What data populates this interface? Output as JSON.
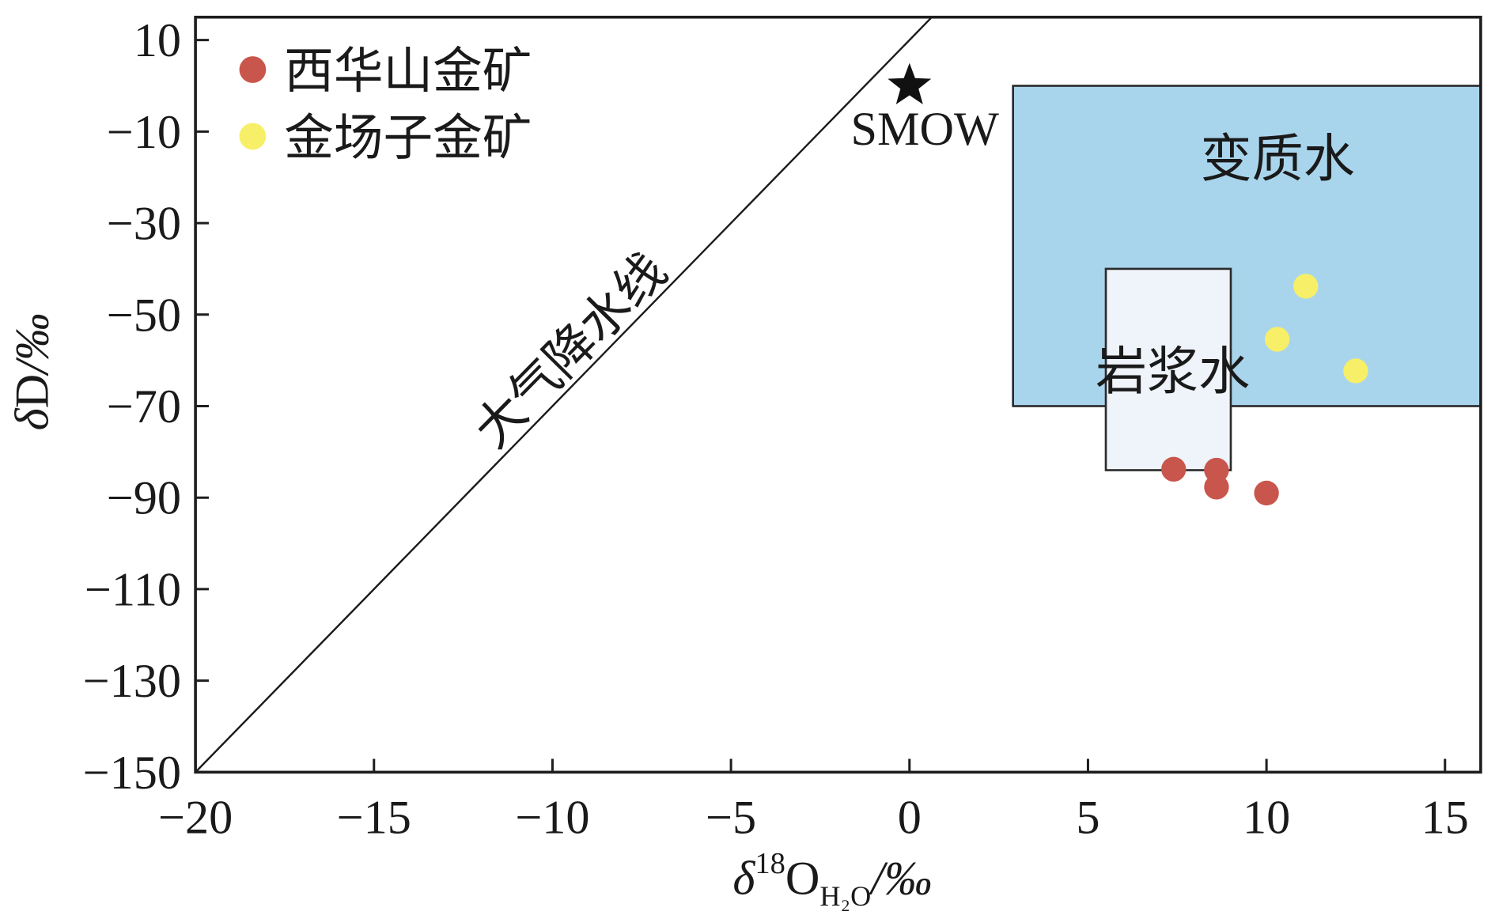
{
  "chart_data": {
    "type": "scatter",
    "xlabel": {
      "delta": "δ",
      "superscript": "18",
      "base": "O",
      "subscript": "H₂O",
      "unit": "/‰"
    },
    "ylabel": {
      "delta": "δ",
      "base": "D",
      "unit": "/‰"
    },
    "xlim": [
      -20,
      16
    ],
    "ylim": [
      -150,
      15
    ],
    "x_ticks": [
      {
        "value": -20,
        "label": "−20"
      },
      {
        "value": -15,
        "label": "−15"
      },
      {
        "value": -10,
        "label": "−10"
      },
      {
        "value": -5,
        "label": "−5"
      },
      {
        "value": 0,
        "label": "0"
      },
      {
        "value": 5,
        "label": "5"
      },
      {
        "value": 10,
        "label": "10"
      },
      {
        "value": 15,
        "label": "15"
      }
    ],
    "y_ticks": [
      {
        "value": 10,
        "label": "10"
      },
      {
        "value": -10,
        "label": "−10"
      },
      {
        "value": -30,
        "label": "−30"
      },
      {
        "value": -50,
        "label": "−50"
      },
      {
        "value": -70,
        "label": "−70"
      },
      {
        "value": -90,
        "label": "−90"
      },
      {
        "value": -110,
        "label": "−110"
      },
      {
        "value": -130,
        "label": "−130"
      },
      {
        "value": -150,
        "label": "−150"
      }
    ],
    "grid": false,
    "legend_position": "top-left",
    "series": [
      {
        "name": "西华山金矿",
        "color": "#c9564c",
        "marker": "circle",
        "points": [
          [
            7.4,
            -83.8
          ],
          [
            8.6,
            -84.0
          ],
          [
            8.6,
            -87.7
          ],
          [
            10.0,
            -89.0
          ]
        ]
      },
      {
        "name": "金场子金矿",
        "color": "#f7ef67",
        "marker": "circle",
        "points": [
          [
            11.1,
            -43.8
          ],
          [
            10.3,
            -55.4
          ],
          [
            12.5,
            -62.3
          ]
        ]
      }
    ],
    "reference_point": {
      "label": "SMOW",
      "x": 0,
      "y": 0,
      "marker": "star",
      "color": "#111111"
    },
    "meteoric_line": {
      "label": "大气降水线",
      "points": [
        [
          -20,
          -150
        ],
        [
          0.625,
          15
        ]
      ],
      "color": "#1a1a1a"
    },
    "regions": [
      {
        "label": "变质水",
        "x_range": [
          2.9,
          16
        ],
        "y_range": [
          -70,
          0
        ],
        "fill": "#a9d5ec",
        "stroke": "#2b2b2b"
      },
      {
        "label": "岩浆水",
        "x_range": [
          5.5,
          9
        ],
        "y_range": [
          -84,
          -40
        ],
        "fill": "#eef4fa",
        "stroke": "#2b2b2b"
      }
    ]
  }
}
